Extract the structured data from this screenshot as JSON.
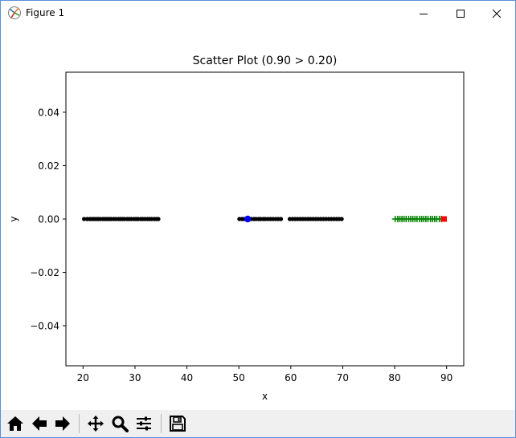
{
  "window": {
    "title": "Figure 1"
  },
  "toolbar": {
    "buttons": [
      "home-icon",
      "back-arrow-icon",
      "forward-arrow-icon",
      "pan-icon",
      "zoom-icon",
      "configure-subplots-icon",
      "save-icon"
    ]
  },
  "chart_data": {
    "type": "scatter",
    "title": "Scatter Plot (0.90 > 0.20)",
    "xlabel": "x",
    "ylabel": "y",
    "xlim": [
      16.7,
      93.3
    ],
    "ylim": [
      -0.055,
      0.055
    ],
    "xticks": [
      20,
      30,
      40,
      50,
      60,
      70,
      80,
      90
    ],
    "yticks": [
      -0.04,
      -0.02,
      0.0,
      0.02,
      0.04
    ],
    "ytick_labels": [
      "−0.04",
      "−0.02",
      "0.00",
      "0.02",
      "0.04"
    ],
    "grid": false,
    "legend": "none",
    "series": [
      {
        "marker": "dot",
        "color": "#000000",
        "x": [
          20.2,
          20.8,
          21.3,
          21.7,
          22.1,
          22.5,
          22.9,
          23.3,
          23.8,
          24.2,
          24.6,
          25.0,
          25.4,
          25.9,
          26.3,
          26.8,
          27.2,
          27.6,
          28.0,
          28.5,
          28.9,
          29.3,
          29.8,
          30.2,
          30.6,
          31.1,
          31.5,
          31.9,
          32.4,
          32.8,
          33.2,
          33.7,
          34.1,
          34.5,
          50.1,
          50.6,
          51.0,
          52.4,
          52.9,
          53.3,
          53.8,
          54.2,
          54.7,
          55.1,
          55.6,
          56.1,
          56.6,
          57.1,
          57.6,
          58.1,
          59.8,
          60.3,
          60.8,
          61.3,
          61.8,
          62.3,
          62.8,
          63.3,
          63.8,
          64.3,
          64.8,
          65.3,
          65.8,
          66.3,
          66.8,
          67.3,
          67.8,
          68.3,
          68.8,
          69.3,
          69.8
        ],
        "y": 0.0
      },
      {
        "marker": "plus",
        "color": "#008000",
        "x": [
          80.1,
          80.6,
          81.0,
          81.4,
          81.8,
          82.2,
          82.7,
          83.1,
          83.5,
          83.9,
          84.3,
          84.8,
          85.2,
          85.6,
          86.0,
          86.4,
          86.9,
          87.3,
          87.7,
          88.1,
          88.6,
          89.0
        ],
        "y": 0.0
      },
      {
        "marker": "circle",
        "color": "#0000ff",
        "x": [
          51.7
        ],
        "y": 0.0
      },
      {
        "marker": "square",
        "color": "#ff0000",
        "x": [
          89.5
        ],
        "y": 0.0
      }
    ]
  }
}
